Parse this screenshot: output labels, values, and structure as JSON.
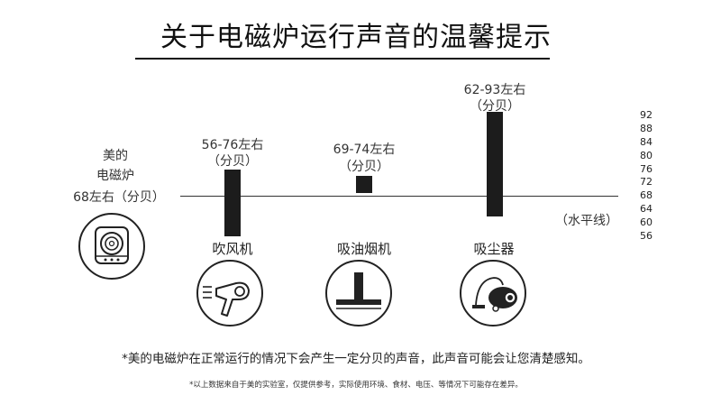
{
  "title": "关于电磁炉运行声音的温馨提示",
  "induction": {
    "line1": "美的",
    "line2": "电磁炉",
    "line3": "68左右（分贝）"
  },
  "baseline_label": "（水平线）",
  "axis_ticks": [
    "92",
    "88",
    "84",
    "80",
    "76",
    "72",
    "68",
    "64",
    "60",
    "56"
  ],
  "devices": [
    {
      "name": "吹风机",
      "range_label": "56-76左右",
      "unit_label": "（分贝）"
    },
    {
      "name": "吸油烟机",
      "range_label": "69-74左右",
      "unit_label": "（分贝）"
    },
    {
      "name": "吸尘器",
      "range_label": "62-93左右",
      "unit_label": "（分贝）"
    }
  ],
  "footnote_main": "*美的电磁炉在正常运行的情况下会产生一定分贝的声音，此声音可能会让您清楚感知。",
  "footnote_small": "*以上数据来自于美的实验室，仅提供参考，实际使用环境、食材、电压、等情况下可能存在差异。",
  "icons": [
    "induction-cooker-icon",
    "hair-dryer-icon",
    "range-hood-icon",
    "vacuum-cleaner-icon"
  ],
  "colors": {
    "bar": "#1c1c1c",
    "text": "#222222",
    "line": "#333333"
  },
  "chart_data": {
    "type": "bar",
    "categories": [
      "吹风机",
      "吸油烟机",
      "吸尘器"
    ],
    "series": [
      {
        "values": [
          [
            56,
            76
          ],
          [
            69,
            74
          ],
          [
            62,
            93
          ]
        ]
      }
    ],
    "reference_line": 68,
    "reference_label": "（水平线）",
    "ylim": [
      56,
      93
    ],
    "yticks": [
      92,
      88,
      84,
      80,
      76,
      72,
      68,
      64,
      60,
      56
    ]
  }
}
